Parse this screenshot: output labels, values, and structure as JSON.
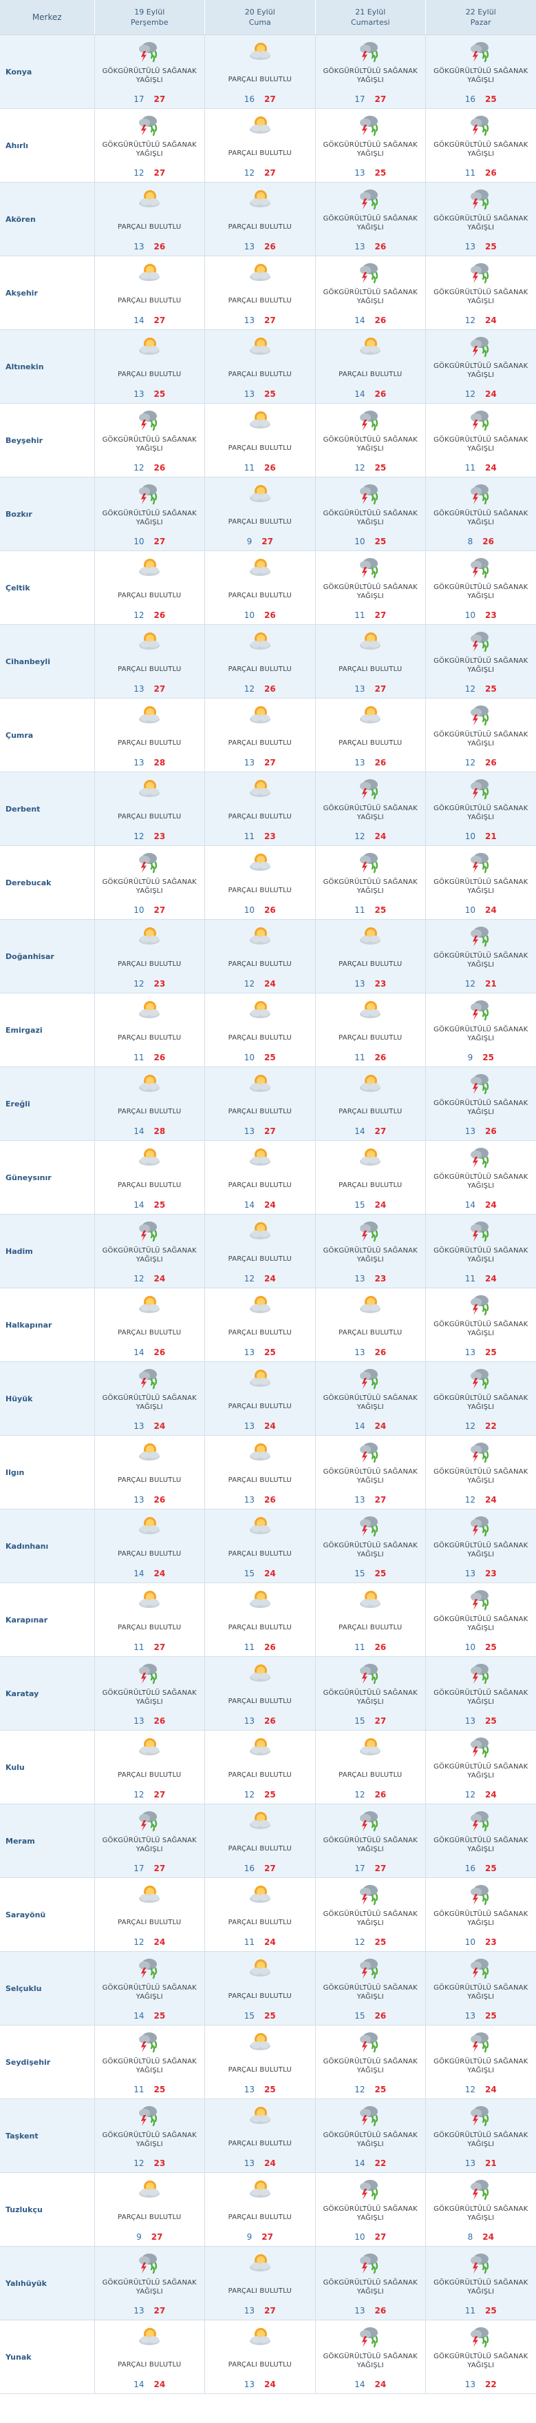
{
  "header": {
    "name_label": "Merkez",
    "days": [
      {
        "date": "19 Eylül",
        "weekday": "Perşembe"
      },
      {
        "date": "20 Eylül",
        "weekday": "Cuma"
      },
      {
        "date": "21 Eylül",
        "weekday": "Cumartesi"
      },
      {
        "date": "22 Eylül",
        "weekday": "Pazar"
      }
    ]
  },
  "icons": {
    "storm": "thunderstorm-rain-icon",
    "cloud": "partly-cloudy-icon"
  },
  "conditions": {
    "storm": "GÖKGÜRÜLTÜLÜ SAĞANAK YAĞIŞLI",
    "cloud": "PARÇALI BULUTLU"
  },
  "rows": [
    {
      "name": "Konya",
      "days": [
        {
          "cond": "GÖKGÜRÜLTÜLÜ SAĞANAK YAĞIŞLI",
          "min": "17",
          "max": "27"
        },
        {
          "cond": "PARÇALI BULUTLU",
          "min": "16",
          "max": "27"
        },
        {
          "cond": "GÖKGÜRÜLTÜLÜ SAĞANAK YAĞIŞLI",
          "min": "17",
          "max": "27"
        },
        {
          "cond": "GÖKGÜRÜLTÜLÜ SAĞANAK YAĞIŞLI",
          "min": "16",
          "max": "25"
        }
      ]
    },
    {
      "name": "Ahırlı",
      "days": [
        {
          "cond": "GÖKGÜRÜLTÜLÜ SAĞANAK YAĞIŞLI",
          "min": "12",
          "max": "27"
        },
        {
          "cond": "PARÇALI BULUTLU",
          "min": "12",
          "max": "27"
        },
        {
          "cond": "GÖKGÜRÜLTÜLÜ SAĞANAK YAĞIŞLI",
          "min": "13",
          "max": "25"
        },
        {
          "cond": "GÖKGÜRÜLTÜLÜ SAĞANAK YAĞIŞLI",
          "min": "11",
          "max": "26"
        }
      ]
    },
    {
      "name": "Akören",
      "days": [
        {
          "cond": "PARÇALI BULUTLU",
          "min": "13",
          "max": "26"
        },
        {
          "cond": "PARÇALI BULUTLU",
          "min": "13",
          "max": "26"
        },
        {
          "cond": "GÖKGÜRÜLTÜLÜ SAĞANAK YAĞIŞLI",
          "min": "13",
          "max": "26"
        },
        {
          "cond": "GÖKGÜRÜLTÜLÜ SAĞANAK YAĞIŞLI",
          "min": "13",
          "max": "25"
        }
      ]
    },
    {
      "name": "Akşehir",
      "days": [
        {
          "cond": "PARÇALI BULUTLU",
          "min": "14",
          "max": "27"
        },
        {
          "cond": "PARÇALI BULUTLU",
          "min": "13",
          "max": "27"
        },
        {
          "cond": "GÖKGÜRÜLTÜLÜ SAĞANAK YAĞIŞLI",
          "min": "14",
          "max": "26"
        },
        {
          "cond": "GÖKGÜRÜLTÜLÜ SAĞANAK YAĞIŞLI",
          "min": "12",
          "max": "24"
        }
      ]
    },
    {
      "name": "Altınekin",
      "days": [
        {
          "cond": "PARÇALI BULUTLU",
          "min": "13",
          "max": "25"
        },
        {
          "cond": "PARÇALI BULUTLU",
          "min": "13",
          "max": "25"
        },
        {
          "cond": "PARÇALI BULUTLU",
          "min": "14",
          "max": "26"
        },
        {
          "cond": "GÖKGÜRÜLTÜLÜ SAĞANAK YAĞIŞLI",
          "min": "12",
          "max": "24"
        }
      ]
    },
    {
      "name": "Beyşehir",
      "days": [
        {
          "cond": "GÖKGÜRÜLTÜLÜ SAĞANAK YAĞIŞLI",
          "min": "12",
          "max": "26"
        },
        {
          "cond": "PARÇALI BULUTLU",
          "min": "11",
          "max": "26"
        },
        {
          "cond": "GÖKGÜRÜLTÜLÜ SAĞANAK YAĞIŞLI",
          "min": "12",
          "max": "25"
        },
        {
          "cond": "GÖKGÜRÜLTÜLÜ SAĞANAK YAĞIŞLI",
          "min": "11",
          "max": "24"
        }
      ]
    },
    {
      "name": "Bozkır",
      "days": [
        {
          "cond": "GÖKGÜRÜLTÜLÜ SAĞANAK YAĞIŞLI",
          "min": "10",
          "max": "27"
        },
        {
          "cond": "PARÇALI BULUTLU",
          "min": "9",
          "max": "27"
        },
        {
          "cond": "GÖKGÜRÜLTÜLÜ SAĞANAK YAĞIŞLI",
          "min": "10",
          "max": "25"
        },
        {
          "cond": "GÖKGÜRÜLTÜLÜ SAĞANAK YAĞIŞLI",
          "min": "8",
          "max": "26"
        }
      ]
    },
    {
      "name": "Çeltik",
      "days": [
        {
          "cond": "PARÇALI BULUTLU",
          "min": "12",
          "max": "26"
        },
        {
          "cond": "PARÇALI BULUTLU",
          "min": "10",
          "max": "26"
        },
        {
          "cond": "GÖKGÜRÜLTÜLÜ SAĞANAK YAĞIŞLI",
          "min": "11",
          "max": "27"
        },
        {
          "cond": "GÖKGÜRÜLTÜLÜ SAĞANAK YAĞIŞLI",
          "min": "10",
          "max": "23"
        }
      ]
    },
    {
      "name": "Cihanbeyli",
      "days": [
        {
          "cond": "PARÇALI BULUTLU",
          "min": "13",
          "max": "27"
        },
        {
          "cond": "PARÇALI BULUTLU",
          "min": "12",
          "max": "26"
        },
        {
          "cond": "PARÇALI BULUTLU",
          "min": "13",
          "max": "27"
        },
        {
          "cond": "GÖKGÜRÜLTÜLÜ SAĞANAK YAĞIŞLI",
          "min": "12",
          "max": "25"
        }
      ]
    },
    {
      "name": "Çumra",
      "days": [
        {
          "cond": "PARÇALI BULUTLU",
          "min": "13",
          "max": "28"
        },
        {
          "cond": "PARÇALI BULUTLU",
          "min": "13",
          "max": "27"
        },
        {
          "cond": "PARÇALI BULUTLU",
          "min": "13",
          "max": "26"
        },
        {
          "cond": "GÖKGÜRÜLTÜLÜ SAĞANAK YAĞIŞLI",
          "min": "12",
          "max": "26"
        }
      ]
    },
    {
      "name": "Derbent",
      "days": [
        {
          "cond": "PARÇALI BULUTLU",
          "min": "12",
          "max": "23"
        },
        {
          "cond": "PARÇALI BULUTLU",
          "min": "11",
          "max": "23"
        },
        {
          "cond": "GÖKGÜRÜLTÜLÜ SAĞANAK YAĞIŞLI",
          "min": "12",
          "max": "24"
        },
        {
          "cond": "GÖKGÜRÜLTÜLÜ SAĞANAK YAĞIŞLI",
          "min": "10",
          "max": "21"
        }
      ]
    },
    {
      "name": "Derebucak",
      "days": [
        {
          "cond": "GÖKGÜRÜLTÜLÜ SAĞANAK YAĞIŞLI",
          "min": "10",
          "max": "27"
        },
        {
          "cond": "PARÇALI BULUTLU",
          "min": "10",
          "max": "26"
        },
        {
          "cond": "GÖKGÜRÜLTÜLÜ SAĞANAK YAĞIŞLI",
          "min": "11",
          "max": "25"
        },
        {
          "cond": "GÖKGÜRÜLTÜLÜ SAĞANAK YAĞIŞLI",
          "min": "10",
          "max": "24"
        }
      ]
    },
    {
      "name": "Doğanhisar",
      "days": [
        {
          "cond": "PARÇALI BULUTLU",
          "min": "12",
          "max": "23"
        },
        {
          "cond": "PARÇALI BULUTLU",
          "min": "12",
          "max": "24"
        },
        {
          "cond": "PARÇALI BULUTLU",
          "min": "13",
          "max": "23"
        },
        {
          "cond": "GÖKGÜRÜLTÜLÜ SAĞANAK YAĞIŞLI",
          "min": "12",
          "max": "21"
        }
      ]
    },
    {
      "name": "Emirgazi",
      "days": [
        {
          "cond": "PARÇALI BULUTLU",
          "min": "11",
          "max": "26"
        },
        {
          "cond": "PARÇALI BULUTLU",
          "min": "10",
          "max": "25"
        },
        {
          "cond": "PARÇALI BULUTLU",
          "min": "11",
          "max": "26"
        },
        {
          "cond": "GÖKGÜRÜLTÜLÜ SAĞANAK YAĞIŞLI",
          "min": "9",
          "max": "25"
        }
      ]
    },
    {
      "name": "Ereğli",
      "days": [
        {
          "cond": "PARÇALI BULUTLU",
          "min": "14",
          "max": "28"
        },
        {
          "cond": "PARÇALI BULUTLU",
          "min": "13",
          "max": "27"
        },
        {
          "cond": "PARÇALI BULUTLU",
          "min": "14",
          "max": "27"
        },
        {
          "cond": "GÖKGÜRÜLTÜLÜ SAĞANAK YAĞIŞLI",
          "min": "13",
          "max": "26"
        }
      ]
    },
    {
      "name": "Güneysınır",
      "days": [
        {
          "cond": "PARÇALI BULUTLU",
          "min": "14",
          "max": "25"
        },
        {
          "cond": "PARÇALI BULUTLU",
          "min": "14",
          "max": "24"
        },
        {
          "cond": "PARÇALI BULUTLU",
          "min": "15",
          "max": "24"
        },
        {
          "cond": "GÖKGÜRÜLTÜLÜ SAĞANAK YAĞIŞLI",
          "min": "14",
          "max": "24"
        }
      ]
    },
    {
      "name": "Hadim",
      "days": [
        {
          "cond": "GÖKGÜRÜLTÜLÜ SAĞANAK YAĞIŞLI",
          "min": "12",
          "max": "24"
        },
        {
          "cond": "PARÇALI BULUTLU",
          "min": "12",
          "max": "24"
        },
        {
          "cond": "GÖKGÜRÜLTÜLÜ SAĞANAK YAĞIŞLI",
          "min": "13",
          "max": "23"
        },
        {
          "cond": "GÖKGÜRÜLTÜLÜ SAĞANAK YAĞIŞLI",
          "min": "11",
          "max": "24"
        }
      ]
    },
    {
      "name": "Halkapınar",
      "days": [
        {
          "cond": "PARÇALI BULUTLU",
          "min": "14",
          "max": "26"
        },
        {
          "cond": "PARÇALI BULUTLU",
          "min": "13",
          "max": "25"
        },
        {
          "cond": "PARÇALI BULUTLU",
          "min": "13",
          "max": "26"
        },
        {
          "cond": "GÖKGÜRÜLTÜLÜ SAĞANAK YAĞIŞLI",
          "min": "13",
          "max": "25"
        }
      ]
    },
    {
      "name": "Hüyük",
      "days": [
        {
          "cond": "GÖKGÜRÜLTÜLÜ SAĞANAK YAĞIŞLI",
          "min": "13",
          "max": "24"
        },
        {
          "cond": "PARÇALI BULUTLU",
          "min": "13",
          "max": "24"
        },
        {
          "cond": "GÖKGÜRÜLTÜLÜ SAĞANAK YAĞIŞLI",
          "min": "14",
          "max": "24"
        },
        {
          "cond": "GÖKGÜRÜLTÜLÜ SAĞANAK YAĞIŞLI",
          "min": "12",
          "max": "22"
        }
      ]
    },
    {
      "name": "Ilgın",
      "days": [
        {
          "cond": "PARÇALI BULUTLU",
          "min": "13",
          "max": "26"
        },
        {
          "cond": "PARÇALI BULUTLU",
          "min": "13",
          "max": "26"
        },
        {
          "cond": "GÖKGÜRÜLTÜLÜ SAĞANAK YAĞIŞLI",
          "min": "13",
          "max": "27"
        },
        {
          "cond": "GÖKGÜRÜLTÜLÜ SAĞANAK YAĞIŞLI",
          "min": "12",
          "max": "24"
        }
      ]
    },
    {
      "name": "Kadınhanı",
      "days": [
        {
          "cond": "PARÇALI BULUTLU",
          "min": "14",
          "max": "24"
        },
        {
          "cond": "PARÇALI BULUTLU",
          "min": "15",
          "max": "24"
        },
        {
          "cond": "GÖKGÜRÜLTÜLÜ SAĞANAK YAĞIŞLI",
          "min": "15",
          "max": "25"
        },
        {
          "cond": "GÖKGÜRÜLTÜLÜ SAĞANAK YAĞIŞLI",
          "min": "13",
          "max": "23"
        }
      ]
    },
    {
      "name": "Karapınar",
      "days": [
        {
          "cond": "PARÇALI BULUTLU",
          "min": "11",
          "max": "27"
        },
        {
          "cond": "PARÇALI BULUTLU",
          "min": "11",
          "max": "26"
        },
        {
          "cond": "PARÇALI BULUTLU",
          "min": "11",
          "max": "26"
        },
        {
          "cond": "GÖKGÜRÜLTÜLÜ SAĞANAK YAĞIŞLI",
          "min": "10",
          "max": "25"
        }
      ]
    },
    {
      "name": "Karatay",
      "days": [
        {
          "cond": "GÖKGÜRÜLTÜLÜ SAĞANAK YAĞIŞLI",
          "min": "13",
          "max": "26"
        },
        {
          "cond": "PARÇALI BULUTLU",
          "min": "13",
          "max": "26"
        },
        {
          "cond": "GÖKGÜRÜLTÜLÜ SAĞANAK YAĞIŞLI",
          "min": "15",
          "max": "27"
        },
        {
          "cond": "GÖKGÜRÜLTÜLÜ SAĞANAK YAĞIŞLI",
          "min": "13",
          "max": "25"
        }
      ]
    },
    {
      "name": "Kulu",
      "days": [
        {
          "cond": "PARÇALI BULUTLU",
          "min": "12",
          "max": "27"
        },
        {
          "cond": "PARÇALI BULUTLU",
          "min": "12",
          "max": "25"
        },
        {
          "cond": "PARÇALI BULUTLU",
          "min": "12",
          "max": "26"
        },
        {
          "cond": "GÖKGÜRÜLTÜLÜ SAĞANAK YAĞIŞLI",
          "min": "12",
          "max": "24"
        }
      ]
    },
    {
      "name": "Meram",
      "days": [
        {
          "cond": "GÖKGÜRÜLTÜLÜ SAĞANAK YAĞIŞLI",
          "min": "17",
          "max": "27"
        },
        {
          "cond": "PARÇALI BULUTLU",
          "min": "16",
          "max": "27"
        },
        {
          "cond": "GÖKGÜRÜLTÜLÜ SAĞANAK YAĞIŞLI",
          "min": "17",
          "max": "27"
        },
        {
          "cond": "GÖKGÜRÜLTÜLÜ SAĞANAK YAĞIŞLI",
          "min": "16",
          "max": "25"
        }
      ]
    },
    {
      "name": "Sarayönü",
      "days": [
        {
          "cond": "PARÇALI BULUTLU",
          "min": "12",
          "max": "24"
        },
        {
          "cond": "PARÇALI BULUTLU",
          "min": "11",
          "max": "24"
        },
        {
          "cond": "GÖKGÜRÜLTÜLÜ SAĞANAK YAĞIŞLI",
          "min": "12",
          "max": "25"
        },
        {
          "cond": "GÖKGÜRÜLTÜLÜ SAĞANAK YAĞIŞLI",
          "min": "10",
          "max": "23"
        }
      ]
    },
    {
      "name": "Selçuklu",
      "days": [
        {
          "cond": "GÖKGÜRÜLTÜLÜ SAĞANAK YAĞIŞLI",
          "min": "14",
          "max": "25"
        },
        {
          "cond": "PARÇALI BULUTLU",
          "min": "15",
          "max": "25"
        },
        {
          "cond": "GÖKGÜRÜLTÜLÜ SAĞANAK YAĞIŞLI",
          "min": "15",
          "max": "26"
        },
        {
          "cond": "GÖKGÜRÜLTÜLÜ SAĞANAK YAĞIŞLI",
          "min": "13",
          "max": "25"
        }
      ]
    },
    {
      "name": "Seydişehir",
      "days": [
        {
          "cond": "GÖKGÜRÜLTÜLÜ SAĞANAK YAĞIŞLI",
          "min": "11",
          "max": "25"
        },
        {
          "cond": "PARÇALI BULUTLU",
          "min": "13",
          "max": "25"
        },
        {
          "cond": "GÖKGÜRÜLTÜLÜ SAĞANAK YAĞIŞLI",
          "min": "12",
          "max": "25"
        },
        {
          "cond": "GÖKGÜRÜLTÜLÜ SAĞANAK YAĞIŞLI",
          "min": "12",
          "max": "24"
        }
      ]
    },
    {
      "name": "Taşkent",
      "days": [
        {
          "cond": "GÖKGÜRÜLTÜLÜ SAĞANAK YAĞIŞLI",
          "min": "12",
          "max": "23"
        },
        {
          "cond": "PARÇALI BULUTLU",
          "min": "13",
          "max": "24"
        },
        {
          "cond": "GÖKGÜRÜLTÜLÜ SAĞANAK YAĞIŞLI",
          "min": "14",
          "max": "22"
        },
        {
          "cond": "GÖKGÜRÜLTÜLÜ SAĞANAK YAĞIŞLI",
          "min": "13",
          "max": "21"
        }
      ]
    },
    {
      "name": "Tuzlukçu",
      "days": [
        {
          "cond": "PARÇALI BULUTLU",
          "min": "9",
          "max": "27"
        },
        {
          "cond": "PARÇALI BULUTLU",
          "min": "9",
          "max": "27"
        },
        {
          "cond": "GÖKGÜRÜLTÜLÜ SAĞANAK YAĞIŞLI",
          "min": "10",
          "max": "27"
        },
        {
          "cond": "GÖKGÜRÜLTÜLÜ SAĞANAK YAĞIŞLI",
          "min": "8",
          "max": "24"
        }
      ]
    },
    {
      "name": "Yalıhüyük",
      "days": [
        {
          "cond": "GÖKGÜRÜLTÜLÜ SAĞANAK YAĞIŞLI",
          "min": "13",
          "max": "27"
        },
        {
          "cond": "PARÇALI BULUTLU",
          "min": "13",
          "max": "27"
        },
        {
          "cond": "GÖKGÜRÜLTÜLÜ SAĞANAK YAĞIŞLI",
          "min": "13",
          "max": "26"
        },
        {
          "cond": "GÖKGÜRÜLTÜLÜ SAĞANAK YAĞIŞLI",
          "min": "11",
          "max": "25"
        }
      ]
    },
    {
      "name": "Yunak",
      "days": [
        {
          "cond": "PARÇALI BULUTLU",
          "min": "14",
          "max": "24"
        },
        {
          "cond": "PARÇALI BULUTLU",
          "min": "13",
          "max": "24"
        },
        {
          "cond": "GÖKGÜRÜLTÜLÜ SAĞANAK YAĞIŞLI",
          "min": "14",
          "max": "24"
        },
        {
          "cond": "GÖKGÜRÜLTÜLÜ SAĞANAK YAĞIŞLI",
          "min": "13",
          "max": "22"
        }
      ]
    }
  ]
}
